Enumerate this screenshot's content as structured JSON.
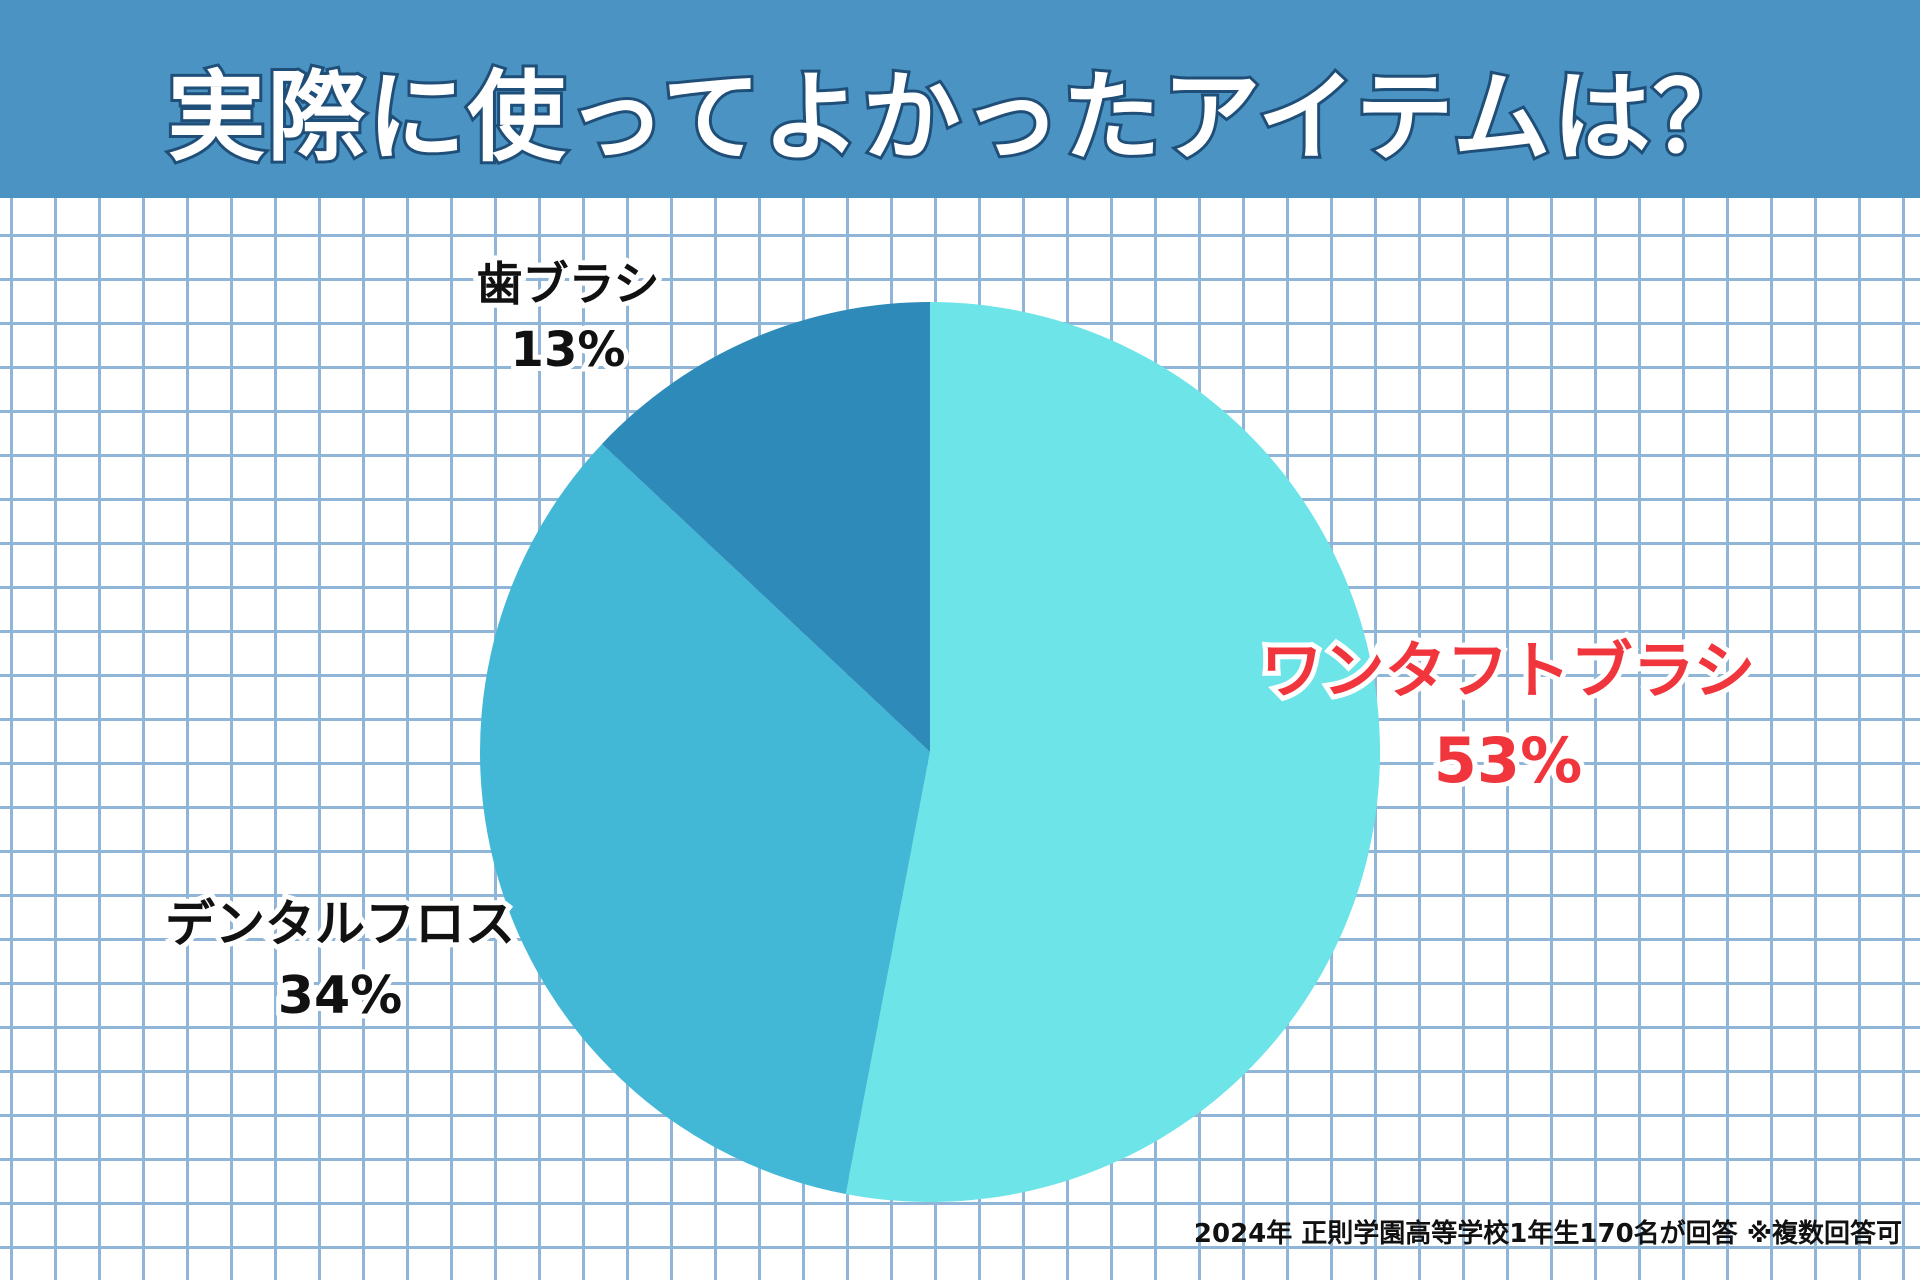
{
  "title": "実際に使ってよかったアイテムは？",
  "footnote": "2024年 正則学園高等学校1年生170名が回答 ※複数回答可",
  "colors": {
    "header_bg": "#4a93c2",
    "grid_line": "#8fb6d8",
    "highlight_label": "#f0363c"
  },
  "chart_data": {
    "type": "pie",
    "title": "実際に使ってよかったアイテムは？",
    "slices": [
      {
        "label": "ワンタフトブラシ",
        "value": 53,
        "value_label": "53%",
        "color": "#6ce4e8"
      },
      {
        "label": "デンタルフロス",
        "value": 34,
        "value_label": "34%",
        "color": "#43b7d6"
      },
      {
        "label": "歯ブラシ",
        "value": 13,
        "value_label": "13%",
        "color": "#2e8ab8"
      }
    ],
    "start": "12 o'clock",
    "direction": "clockwise",
    "legend": "none"
  }
}
